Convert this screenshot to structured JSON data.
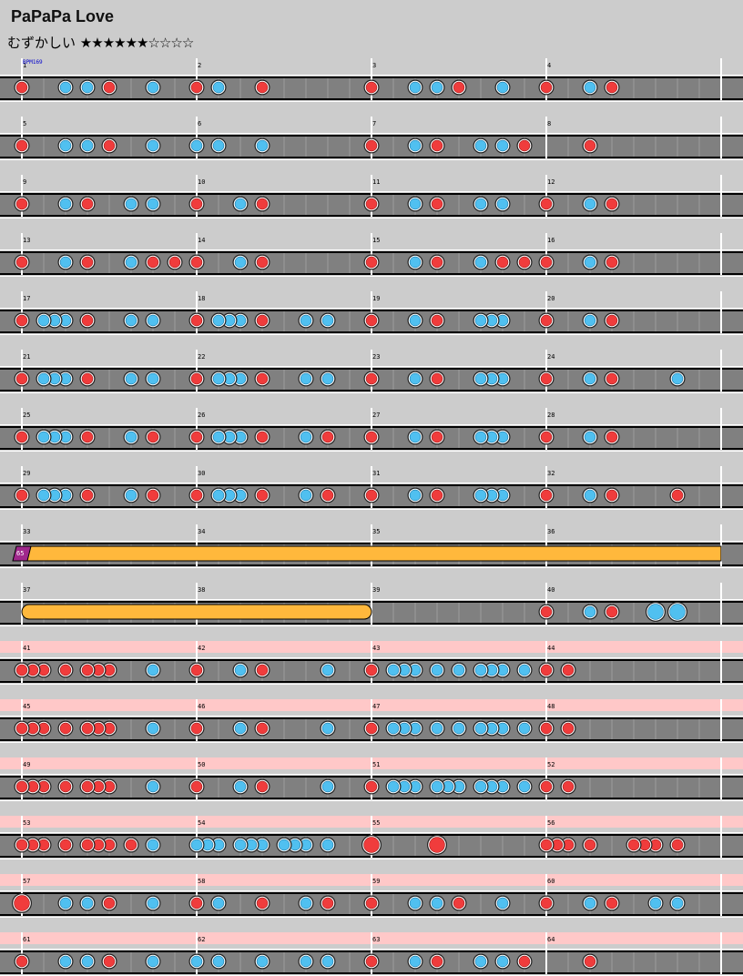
{
  "song": {
    "title": "PaPaPa Love",
    "difficulty_label": "むずかしい",
    "stars_text": "★★★★★★☆☆☆☆",
    "bpm_label": "BPM169"
  },
  "rows": [
    {
      "measures": [
        1,
        2,
        3,
        4
      ],
      "pink": false,
      "notes": [
        [
          0,
          "d"
        ],
        [
          2,
          "k"
        ],
        [
          3,
          "k"
        ],
        [
          4,
          "d"
        ],
        [
          6,
          "k"
        ],
        [
          8,
          "d"
        ],
        [
          9,
          "k"
        ],
        [
          11,
          "d"
        ],
        [
          16,
          "d"
        ],
        [
          18,
          "k"
        ],
        [
          19,
          "k"
        ],
        [
          20,
          "d"
        ],
        [
          22,
          "k"
        ],
        [
          24,
          "d"
        ],
        [
          26,
          "k"
        ],
        [
          27,
          "d"
        ]
      ]
    },
    {
      "measures": [
        5,
        6,
        7,
        8
      ],
      "pink": false,
      "notes": [
        [
          0,
          "d"
        ],
        [
          2,
          "k"
        ],
        [
          3,
          "k"
        ],
        [
          4,
          "d"
        ],
        [
          6,
          "k"
        ],
        [
          8,
          "k"
        ],
        [
          9,
          "k"
        ],
        [
          11,
          "k"
        ],
        [
          16,
          "d"
        ],
        [
          18,
          "k"
        ],
        [
          19,
          "d"
        ],
        [
          21,
          "k"
        ],
        [
          22,
          "k"
        ],
        [
          23,
          "d"
        ],
        [
          26,
          "d"
        ]
      ]
    },
    {
      "measures": [
        9,
        10,
        11,
        12
      ],
      "pink": false,
      "notes": [
        [
          0,
          "d"
        ],
        [
          2,
          "k"
        ],
        [
          3,
          "d"
        ],
        [
          5,
          "k"
        ],
        [
          6,
          "k"
        ],
        [
          8,
          "d"
        ],
        [
          10,
          "k"
        ],
        [
          11,
          "d"
        ],
        [
          16,
          "d"
        ],
        [
          18,
          "k"
        ],
        [
          19,
          "d"
        ],
        [
          21,
          "k"
        ],
        [
          22,
          "k"
        ],
        [
          24,
          "d"
        ],
        [
          26,
          "k"
        ],
        [
          27,
          "d"
        ]
      ]
    },
    {
      "measures": [
        13,
        14,
        15,
        16
      ],
      "pink": false,
      "notes": [
        [
          0,
          "d"
        ],
        [
          2,
          "k"
        ],
        [
          3,
          "d"
        ],
        [
          5,
          "k"
        ],
        [
          6,
          "d"
        ],
        [
          7,
          "d"
        ],
        [
          8,
          "d"
        ],
        [
          10,
          "k"
        ],
        [
          11,
          "d"
        ],
        [
          16,
          "d"
        ],
        [
          18,
          "k"
        ],
        [
          19,
          "d"
        ],
        [
          21,
          "k"
        ],
        [
          22,
          "d"
        ],
        [
          23,
          "d"
        ],
        [
          24,
          "d"
        ],
        [
          26,
          "k"
        ],
        [
          27,
          "d"
        ]
      ]
    },
    {
      "measures": [
        17,
        18,
        19,
        20
      ],
      "pink": false,
      "notes": [
        [
          0,
          "d"
        ],
        [
          1,
          "k"
        ],
        [
          1.5,
          "k"
        ],
        [
          2,
          "k"
        ],
        [
          3,
          "d"
        ],
        [
          5,
          "k"
        ],
        [
          6,
          "k"
        ],
        [
          8,
          "d"
        ],
        [
          9,
          "k"
        ],
        [
          9.5,
          "k"
        ],
        [
          10,
          "k"
        ],
        [
          11,
          "d"
        ],
        [
          13,
          "k"
        ],
        [
          14,
          "k"
        ],
        [
          16,
          "d"
        ],
        [
          18,
          "k"
        ],
        [
          19,
          "d"
        ],
        [
          21,
          "k"
        ],
        [
          21.5,
          "k"
        ],
        [
          22,
          "k"
        ],
        [
          24,
          "d"
        ],
        [
          26,
          "k"
        ],
        [
          27,
          "d"
        ]
      ]
    },
    {
      "measures": [
        21,
        22,
        23,
        24
      ],
      "pink": false,
      "notes": [
        [
          0,
          "d"
        ],
        [
          1,
          "k"
        ],
        [
          1.5,
          "k"
        ],
        [
          2,
          "k"
        ],
        [
          3,
          "d"
        ],
        [
          5,
          "k"
        ],
        [
          6,
          "k"
        ],
        [
          8,
          "d"
        ],
        [
          9,
          "k"
        ],
        [
          9.5,
          "k"
        ],
        [
          10,
          "k"
        ],
        [
          11,
          "d"
        ],
        [
          13,
          "k"
        ],
        [
          14,
          "k"
        ],
        [
          16,
          "d"
        ],
        [
          18,
          "k"
        ],
        [
          19,
          "d"
        ],
        [
          21,
          "k"
        ],
        [
          21.5,
          "k"
        ],
        [
          22,
          "k"
        ],
        [
          24,
          "d"
        ],
        [
          26,
          "k"
        ],
        [
          27,
          "d"
        ],
        [
          30,
          "k"
        ]
      ]
    },
    {
      "measures": [
        25,
        26,
        27,
        28
      ],
      "pink": false,
      "notes": [
        [
          0,
          "d"
        ],
        [
          1,
          "k"
        ],
        [
          1.5,
          "k"
        ],
        [
          2,
          "k"
        ],
        [
          3,
          "d"
        ],
        [
          5,
          "k"
        ],
        [
          6,
          "d"
        ],
        [
          8,
          "d"
        ],
        [
          9,
          "k"
        ],
        [
          9.5,
          "k"
        ],
        [
          10,
          "k"
        ],
        [
          11,
          "d"
        ],
        [
          13,
          "k"
        ],
        [
          14,
          "d"
        ],
        [
          16,
          "d"
        ],
        [
          18,
          "k"
        ],
        [
          19,
          "d"
        ],
        [
          21,
          "k"
        ],
        [
          21.5,
          "k"
        ],
        [
          22,
          "k"
        ],
        [
          24,
          "d"
        ],
        [
          26,
          "k"
        ],
        [
          27,
          "d"
        ]
      ]
    },
    {
      "measures": [
        29,
        30,
        31,
        32
      ],
      "pink": false,
      "notes": [
        [
          0,
          "d"
        ],
        [
          1,
          "k"
        ],
        [
          1.5,
          "k"
        ],
        [
          2,
          "k"
        ],
        [
          3,
          "d"
        ],
        [
          5,
          "k"
        ],
        [
          6,
          "d"
        ],
        [
          8,
          "d"
        ],
        [
          9,
          "k"
        ],
        [
          9.5,
          "k"
        ],
        [
          10,
          "k"
        ],
        [
          11,
          "d"
        ],
        [
          13,
          "k"
        ],
        [
          14,
          "d"
        ],
        [
          16,
          "d"
        ],
        [
          18,
          "k"
        ],
        [
          19,
          "d"
        ],
        [
          21,
          "k"
        ],
        [
          21.5,
          "k"
        ],
        [
          22,
          "k"
        ],
        [
          24,
          "d"
        ],
        [
          26,
          "k"
        ],
        [
          27,
          "d"
        ],
        [
          30,
          "d"
        ]
      ]
    },
    {
      "measures": [
        33,
        34,
        35,
        36
      ],
      "pink": false,
      "notes": [],
      "balloon": {
        "label": "65"
      }
    },
    {
      "measures": [
        37,
        38,
        39,
        40
      ],
      "pink": false,
      "roll": {
        "start": 0,
        "end": 16
      },
      "notes": [
        [
          24,
          "d"
        ],
        [
          26,
          "k"
        ],
        [
          27,
          "d"
        ],
        [
          29,
          "K"
        ],
        [
          30,
          "K"
        ]
      ]
    },
    {
      "measures": [
        41,
        42,
        43,
        44
      ],
      "pink": true,
      "notes": [
        [
          0,
          "d"
        ],
        [
          0.5,
          "d"
        ],
        [
          1,
          "d"
        ],
        [
          2,
          "d"
        ],
        [
          3,
          "d"
        ],
        [
          3.5,
          "d"
        ],
        [
          4,
          "d"
        ],
        [
          6,
          "k"
        ],
        [
          8,
          "d"
        ],
        [
          10,
          "k"
        ],
        [
          11,
          "d"
        ],
        [
          14,
          "k"
        ],
        [
          16,
          "d"
        ],
        [
          17,
          "k"
        ],
        [
          17.5,
          "k"
        ],
        [
          18,
          "k"
        ],
        [
          19,
          "k"
        ],
        [
          20,
          "k"
        ],
        [
          21,
          "k"
        ],
        [
          21.5,
          "k"
        ],
        [
          22,
          "k"
        ],
        [
          23,
          "k"
        ],
        [
          24,
          "d"
        ],
        [
          25,
          "d"
        ]
      ]
    },
    {
      "measures": [
        45,
        46,
        47,
        48
      ],
      "pink": true,
      "notes": [
        [
          0,
          "d"
        ],
        [
          0.5,
          "d"
        ],
        [
          1,
          "d"
        ],
        [
          2,
          "d"
        ],
        [
          3,
          "d"
        ],
        [
          3.5,
          "d"
        ],
        [
          4,
          "d"
        ],
        [
          6,
          "k"
        ],
        [
          8,
          "d"
        ],
        [
          10,
          "k"
        ],
        [
          11,
          "d"
        ],
        [
          14,
          "k"
        ],
        [
          16,
          "d"
        ],
        [
          17,
          "k"
        ],
        [
          17.5,
          "k"
        ],
        [
          18,
          "k"
        ],
        [
          19,
          "k"
        ],
        [
          20,
          "k"
        ],
        [
          21,
          "k"
        ],
        [
          21.5,
          "k"
        ],
        [
          22,
          "k"
        ],
        [
          23,
          "k"
        ],
        [
          24,
          "d"
        ],
        [
          25,
          "d"
        ]
      ]
    },
    {
      "measures": [
        49,
        50,
        51,
        52
      ],
      "pink": true,
      "notes": [
        [
          0,
          "d"
        ],
        [
          0.5,
          "d"
        ],
        [
          1,
          "d"
        ],
        [
          2,
          "d"
        ],
        [
          3,
          "d"
        ],
        [
          3.5,
          "d"
        ],
        [
          4,
          "d"
        ],
        [
          6,
          "k"
        ],
        [
          8,
          "d"
        ],
        [
          10,
          "k"
        ],
        [
          11,
          "d"
        ],
        [
          14,
          "k"
        ],
        [
          16,
          "d"
        ],
        [
          17,
          "k"
        ],
        [
          17.5,
          "k"
        ],
        [
          18,
          "k"
        ],
        [
          19,
          "k"
        ],
        [
          19.5,
          "k"
        ],
        [
          20,
          "k"
        ],
        [
          21,
          "k"
        ],
        [
          21.5,
          "k"
        ],
        [
          22,
          "k"
        ],
        [
          23,
          "k"
        ],
        [
          24,
          "d"
        ],
        [
          25,
          "d"
        ]
      ]
    },
    {
      "measures": [
        53,
        54,
        55,
        56
      ],
      "pink": true,
      "notes": [
        [
          0,
          "d"
        ],
        [
          0.5,
          "d"
        ],
        [
          1,
          "d"
        ],
        [
          2,
          "d"
        ],
        [
          3,
          "d"
        ],
        [
          3.5,
          "d"
        ],
        [
          4,
          "d"
        ],
        [
          5,
          "d"
        ],
        [
          6,
          "k"
        ],
        [
          8,
          "k"
        ],
        [
          8.5,
          "k"
        ],
        [
          9,
          "k"
        ],
        [
          10,
          "k"
        ],
        [
          10.5,
          "k"
        ],
        [
          11,
          "k"
        ],
        [
          12,
          "k"
        ],
        [
          12.5,
          "k"
        ],
        [
          13,
          "k"
        ],
        [
          14,
          "k"
        ],
        [
          16,
          "D"
        ],
        [
          19,
          "D"
        ],
        [
          24,
          "d"
        ],
        [
          24.5,
          "d"
        ],
        [
          25,
          "d"
        ],
        [
          26,
          "d"
        ],
        [
          28,
          "d"
        ],
        [
          28.5,
          "d"
        ],
        [
          29,
          "d"
        ],
        [
          30,
          "d"
        ]
      ]
    },
    {
      "measures": [
        57,
        58,
        59,
        60
      ],
      "pink": true,
      "notes": [
        [
          0,
          "D"
        ],
        [
          2,
          "k"
        ],
        [
          3,
          "k"
        ],
        [
          4,
          "d"
        ],
        [
          6,
          "k"
        ],
        [
          8,
          "d"
        ],
        [
          9,
          "k"
        ],
        [
          11,
          "d"
        ],
        [
          13,
          "k"
        ],
        [
          14,
          "d"
        ],
        [
          16,
          "d"
        ],
        [
          18,
          "k"
        ],
        [
          19,
          "k"
        ],
        [
          20,
          "d"
        ],
        [
          22,
          "k"
        ],
        [
          24,
          "d"
        ],
        [
          26,
          "k"
        ],
        [
          27,
          "d"
        ],
        [
          29,
          "k"
        ],
        [
          30,
          "k"
        ]
      ]
    },
    {
      "measures": [
        61,
        62,
        63,
        64
      ],
      "pink": true,
      "notes": [
        [
          0,
          "d"
        ],
        [
          2,
          "k"
        ],
        [
          3,
          "k"
        ],
        [
          4,
          "d"
        ],
        [
          6,
          "k"
        ],
        [
          8,
          "k"
        ],
        [
          9,
          "k"
        ],
        [
          11,
          "k"
        ],
        [
          13,
          "k"
        ],
        [
          14,
          "k"
        ],
        [
          16,
          "d"
        ],
        [
          18,
          "k"
        ],
        [
          19,
          "d"
        ],
        [
          21,
          "k"
        ],
        [
          22,
          "k"
        ],
        [
          23,
          "d"
        ],
        [
          26,
          "d"
        ]
      ]
    }
  ],
  "colors": {
    "background": "#cccccc",
    "pink_background": "#ffc8c8",
    "lane": "#808080",
    "don": "#f03c3c",
    "ka": "#50c0f0",
    "roll": "#ffb83c",
    "balloon": "#a0288c",
    "measure_line": "#ffffff",
    "bpm_text": "#0000cc"
  }
}
